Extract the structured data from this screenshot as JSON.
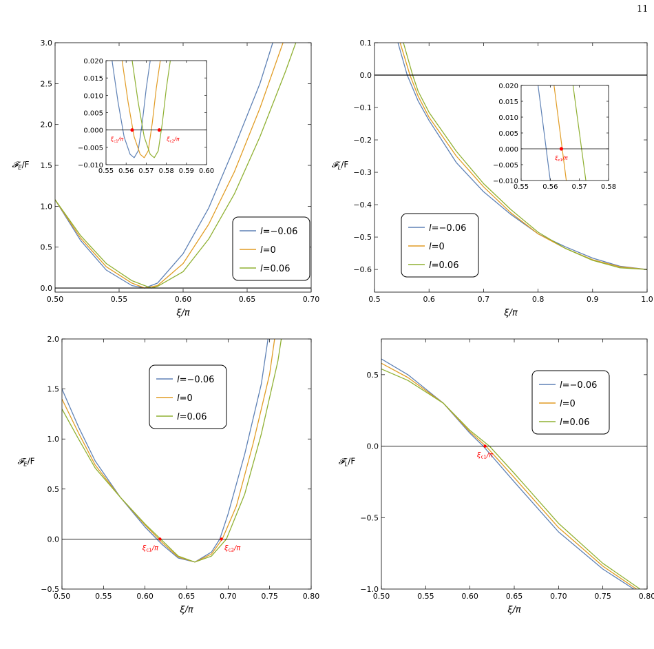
{
  "page_number": "11",
  "colors": {
    "series": [
      "#5e81b5",
      "#e19c24",
      "#8fb032"
    ],
    "crit": "#ff0000",
    "axis": "#000000"
  },
  "chart_data": [
    {
      "type": "line",
      "id": "a",
      "xlabel": "ξ/π",
      "ylabel": "𝓕E/F",
      "xlim": [
        0.5,
        0.7
      ],
      "ylim": [
        -0.05,
        3.0
      ],
      "xticks": [
        "0.50",
        "0.55",
        "0.60",
        "0.65",
        "0.70"
      ],
      "yticks": [
        "0.0",
        "0.5",
        "1.0",
        "1.5",
        "2.0",
        "2.5",
        "3.0"
      ],
      "legend_position": "right",
      "series": [
        {
          "name": "l=−0.06",
          "points": [
            [
              0.5,
              1.08
            ],
            [
              0.52,
              0.58
            ],
            [
              0.54,
              0.22
            ],
            [
              0.56,
              0.03
            ],
            [
              0.57,
              0.0
            ],
            [
              0.58,
              0.06
            ],
            [
              0.6,
              0.42
            ],
            [
              0.62,
              0.98
            ],
            [
              0.64,
              1.72
            ],
            [
              0.66,
              2.5
            ],
            [
              0.67,
              3.0
            ]
          ]
        },
        {
          "name": "l=0",
          "points": [
            [
              0.5,
              1.08
            ],
            [
              0.52,
              0.61
            ],
            [
              0.54,
              0.26
            ],
            [
              0.56,
              0.06
            ],
            [
              0.57,
              0.0
            ],
            [
              0.58,
              0.03
            ],
            [
              0.6,
              0.3
            ],
            [
              0.62,
              0.78
            ],
            [
              0.64,
              1.42
            ],
            [
              0.66,
              2.2
            ],
            [
              0.678,
              3.0
            ]
          ]
        },
        {
          "name": "l=0.06",
          "points": [
            [
              0.5,
              1.08
            ],
            [
              0.52,
              0.64
            ],
            [
              0.54,
              0.3
            ],
            [
              0.56,
              0.09
            ],
            [
              0.575,
              0.0
            ],
            [
              0.58,
              0.02
            ],
            [
              0.6,
              0.2
            ],
            [
              0.62,
              0.6
            ],
            [
              0.64,
              1.15
            ],
            [
              0.66,
              1.85
            ],
            [
              0.68,
              2.65
            ],
            [
              0.688,
              3.0
            ]
          ]
        }
      ],
      "inset": {
        "xlim": [
          0.55,
          0.6
        ],
        "ylim": [
          -0.01,
          0.02
        ],
        "xticks": [
          "0.55",
          "0.56",
          "0.57",
          "0.58",
          "0.59",
          "0.60"
        ],
        "yticks": [
          "-0.010",
          "-0.005",
          "0.000",
          "0.005",
          "0.010",
          "0.015",
          "0.020"
        ],
        "series": [
          {
            "name": "l=−0.06",
            "points": [
              [
                0.553,
                0.02
              ],
              [
                0.556,
                0.008
              ],
              [
                0.559,
                -0.002
              ],
              [
                0.562,
                -0.007
              ],
              [
                0.564,
                -0.008
              ],
              [
                0.566,
                -0.006
              ],
              [
                0.568,
                0.002
              ],
              [
                0.57,
                0.012
              ],
              [
                0.572,
                0.02
              ]
            ]
          },
          {
            "name": "l=0",
            "points": [
              [
                0.558,
                0.02
              ],
              [
                0.561,
                0.008
              ],
              [
                0.564,
                -0.002
              ],
              [
                0.567,
                -0.007
              ],
              [
                0.569,
                -0.008
              ],
              [
                0.571,
                -0.006
              ],
              [
                0.573,
                0.002
              ],
              [
                0.575,
                0.012
              ],
              [
                0.577,
                0.02
              ]
            ]
          },
          {
            "name": "l=0.06",
            "points": [
              [
                0.563,
                0.02
              ],
              [
                0.566,
                0.008
              ],
              [
                0.569,
                -0.002
              ],
              [
                0.572,
                -0.007
              ],
              [
                0.574,
                -0.008
              ],
              [
                0.576,
                -0.006
              ],
              [
                0.578,
                0.002
              ],
              [
                0.58,
                0.012
              ],
              [
                0.582,
                0.02
              ]
            ]
          }
        ],
        "crit_points": [
          {
            "x": 0.563,
            "y": 0.0,
            "label": "ξc1/π"
          },
          {
            "x": 0.5765,
            "y": 0.0,
            "label": "ξc2/π"
          }
        ]
      }
    },
    {
      "type": "line",
      "id": "b",
      "xlabel": "ξ/π",
      "ylabel": "𝓕L/F",
      "xlim": [
        0.5,
        1.0
      ],
      "ylim": [
        -0.67,
        0.1
      ],
      "xticks": [
        "0.5",
        "0.6",
        "0.7",
        "0.8",
        "0.9",
        "1.0"
      ],
      "yticks": [
        "0.1",
        "0.0",
        "-0.1",
        "-0.2",
        "-0.3",
        "-0.4",
        "-0.5",
        "-0.6"
      ],
      "legend_position": "center-left",
      "series": [
        {
          "name": "l=−0.06",
          "points": [
            [
              0.543,
              0.1
            ],
            [
              0.56,
              0.0
            ],
            [
              0.58,
              -0.08
            ],
            [
              0.6,
              -0.14
            ],
            [
              0.65,
              -0.27
            ],
            [
              0.7,
              -0.36
            ],
            [
              0.75,
              -0.43
            ],
            [
              0.8,
              -0.49
            ],
            [
              0.85,
              -0.53
            ],
            [
              0.9,
              -0.565
            ],
            [
              0.95,
              -0.59
            ],
            [
              1.0,
              -0.6
            ]
          ]
        },
        {
          "name": "l=0",
          "points": [
            [
              0.547,
              0.1
            ],
            [
              0.565,
              0.0
            ],
            [
              0.58,
              -0.065
            ],
            [
              0.6,
              -0.13
            ],
            [
              0.65,
              -0.25
            ],
            [
              0.7,
              -0.345
            ],
            [
              0.75,
              -0.425
            ],
            [
              0.8,
              -0.49
            ],
            [
              0.85,
              -0.535
            ],
            [
              0.9,
              -0.57
            ],
            [
              0.95,
              -0.592
            ],
            [
              1.0,
              -0.6
            ]
          ]
        },
        {
          "name": "l=0.06",
          "points": [
            [
              0.553,
              0.1
            ],
            [
              0.57,
              0.0
            ],
            [
              0.58,
              -0.05
            ],
            [
              0.6,
              -0.115
            ],
            [
              0.65,
              -0.235
            ],
            [
              0.7,
              -0.335
            ],
            [
              0.75,
              -0.415
            ],
            [
              0.8,
              -0.485
            ],
            [
              0.85,
              -0.535
            ],
            [
              0.9,
              -0.572
            ],
            [
              0.95,
              -0.595
            ],
            [
              1.0,
              -0.6
            ]
          ]
        }
      ],
      "inset": {
        "xlim": [
          0.55,
          0.58
        ],
        "ylim": [
          -0.01,
          0.02
        ],
        "xticks": [
          "0.55",
          "0.56",
          "0.57",
          "0.58"
        ],
        "yticks": [
          "-0.010",
          "-0.005",
          "0.000",
          "0.005",
          "0.010",
          "0.015",
          "0.020"
        ],
        "series": [
          {
            "name": "l=−0.06",
            "points": [
              [
                0.5558,
                0.02
              ],
              [
                0.56,
                -0.01
              ]
            ]
          },
          {
            "name": "l=0",
            "points": [
              [
                0.5613,
                0.02
              ],
              [
                0.5655,
                -0.01
              ]
            ]
          },
          {
            "name": "l=0.06",
            "points": [
              [
                0.5678,
                0.02
              ],
              [
                0.5722,
                -0.01
              ]
            ]
          }
        ],
        "crit_points": [
          {
            "x": 0.5638,
            "y": 0.0,
            "label": "ξc1/π"
          }
        ]
      }
    },
    {
      "type": "line",
      "id": "c",
      "xlabel": "ξ/π",
      "ylabel": "𝓕E/F",
      "xlim": [
        0.5,
        0.8
      ],
      "ylim": [
        -0.5,
        2.0
      ],
      "xticks": [
        "0.50",
        "0.55",
        "0.60",
        "0.65",
        "0.70",
        "0.75",
        "0.80"
      ],
      "yticks": [
        "2.0",
        "1.5",
        "1.0",
        "0.5",
        "0.0",
        "-0.5"
      ],
      "legend_position": "top-center",
      "series": [
        {
          "name": "l=−0.06",
          "points": [
            [
              0.5,
              1.5
            ],
            [
              0.52,
              1.12
            ],
            [
              0.54,
              0.78
            ],
            [
              0.57,
              0.42
            ],
            [
              0.6,
              0.12
            ],
            [
              0.62,
              -0.05
            ],
            [
              0.64,
              -0.19
            ],
            [
              0.66,
              -0.23
            ],
            [
              0.68,
              -0.13
            ],
            [
              0.69,
              0.0
            ],
            [
              0.7,
              0.25
            ],
            [
              0.72,
              0.85
            ],
            [
              0.74,
              1.55
            ],
            [
              0.748,
              2.0
            ]
          ]
        },
        {
          "name": "l=0",
          "points": [
            [
              0.5,
              1.4
            ],
            [
              0.52,
              1.06
            ],
            [
              0.54,
              0.74
            ],
            [
              0.57,
              0.42
            ],
            [
              0.6,
              0.14
            ],
            [
              0.62,
              -0.03
            ],
            [
              0.64,
              -0.18
            ],
            [
              0.66,
              -0.23
            ],
            [
              0.68,
              -0.15
            ],
            [
              0.693,
              0.0
            ],
            [
              0.71,
              0.33
            ],
            [
              0.73,
              0.95
            ],
            [
              0.75,
              1.65
            ],
            [
              0.756,
              2.0
            ]
          ]
        },
        {
          "name": "l=0.06",
          "points": [
            [
              0.5,
              1.3
            ],
            [
              0.52,
              1.0
            ],
            [
              0.54,
              0.71
            ],
            [
              0.57,
              0.42
            ],
            [
              0.6,
              0.15
            ],
            [
              0.62,
              -0.01
            ],
            [
              0.64,
              -0.17
            ],
            [
              0.66,
              -0.23
            ],
            [
              0.68,
              -0.17
            ],
            [
              0.698,
              0.0
            ],
            [
              0.72,
              0.45
            ],
            [
              0.74,
              1.05
            ],
            [
              0.76,
              1.78
            ],
            [
              0.764,
              2.0
            ]
          ]
        }
      ],
      "crit_points": [
        {
          "x": 0.618,
          "y": 0.0,
          "label": "ξc1/π"
        },
        {
          "x": 0.692,
          "y": 0.0,
          "label": "ξc2/π"
        }
      ]
    },
    {
      "type": "line",
      "id": "d",
      "xlabel": "ξ/π",
      "ylabel": "𝓕L/F",
      "xlim": [
        0.5,
        0.8
      ],
      "ylim": [
        -1.0,
        0.75
      ],
      "xticks": [
        "0.50",
        "0.55",
        "0.60",
        "0.65",
        "0.70",
        "0.75",
        "0.80"
      ],
      "yticks": [
        "0.5",
        "0.0",
        "-0.5",
        "-1.0"
      ],
      "legend_position": "top-right",
      "series": [
        {
          "name": "l=−0.06",
          "points": [
            [
              0.5,
              0.61
            ],
            [
              0.53,
              0.5
            ],
            [
              0.57,
              0.3
            ],
            [
              0.6,
              0.09
            ],
            [
              0.615,
              0.0
            ],
            [
              0.65,
              -0.25
            ],
            [
              0.7,
              -0.6
            ],
            [
              0.75,
              -0.86
            ],
            [
              0.785,
              -1.0
            ]
          ]
        },
        {
          "name": "l=0",
          "points": [
            [
              0.5,
              0.58
            ],
            [
              0.53,
              0.48
            ],
            [
              0.57,
              0.3
            ],
            [
              0.6,
              0.1
            ],
            [
              0.618,
              0.0
            ],
            [
              0.65,
              -0.22
            ],
            [
              0.7,
              -0.57
            ],
            [
              0.75,
              -0.84
            ],
            [
              0.788,
              -1.0
            ]
          ]
        },
        {
          "name": "l=0.06",
          "points": [
            [
              0.5,
              0.54
            ],
            [
              0.53,
              0.46
            ],
            [
              0.57,
              0.3
            ],
            [
              0.6,
              0.11
            ],
            [
              0.622,
              0.0
            ],
            [
              0.65,
              -0.19
            ],
            [
              0.7,
              -0.54
            ],
            [
              0.75,
              -0.82
            ],
            [
              0.792,
              -1.0
            ]
          ]
        }
      ],
      "crit_points": [
        {
          "x": 0.617,
          "y": 0.0,
          "label": "ξc1/π"
        }
      ]
    }
  ]
}
